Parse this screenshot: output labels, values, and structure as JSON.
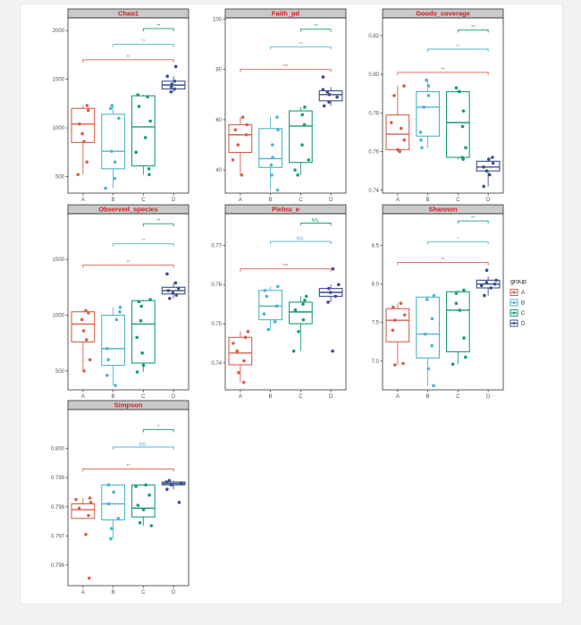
{
  "groups": [
    "A",
    "B",
    "C",
    "D"
  ],
  "colors": {
    "A": "#d6604d",
    "B": "#4fb3d1",
    "C": "#1a9a7a",
    "D": "#3b4f8a"
  },
  "legend": {
    "title": "group",
    "items": [
      "A",
      "B",
      "C",
      "D"
    ]
  },
  "chart_data": [
    {
      "type": "box",
      "title": "Chao1",
      "ylim": [
        330,
        2130
      ],
      "yticks": [
        500,
        1000,
        1500,
        2000
      ],
      "yticklabels": [
        "500",
        "1000",
        "1500",
        "2000"
      ],
      "boxes": [
        {
          "group": "A",
          "lower": 520,
          "q1": 850,
          "median": 1040,
          "q3": 1200,
          "upper": 1230
        },
        {
          "group": "B",
          "lower": 380,
          "q1": 580,
          "median": 760,
          "q3": 1140,
          "upper": 1230
        },
        {
          "group": "C",
          "lower": 520,
          "q1": 610,
          "median": 1010,
          "q3": 1330,
          "upper": 1340
        },
        {
          "group": "D",
          "lower": 1370,
          "q1": 1400,
          "median": 1440,
          "q3": 1480,
          "upper": 1530
        }
      ],
      "points": [
        {
          "group": "A",
          "values": [
            520,
            650,
            860,
            940,
            1040,
            1180,
            1230
          ]
        },
        {
          "group": "B",
          "values": [
            380,
            480,
            650,
            760,
            1100,
            1200,
            1230
          ]
        },
        {
          "group": "C",
          "values": [
            520,
            580,
            750,
            900,
            1070,
            1220,
            1320,
            1340
          ]
        },
        {
          "group": "D",
          "values": [
            1370,
            1400,
            1420,
            1450,
            1480,
            1530,
            1630
          ]
        }
      ],
      "comparisons": [
        {
          "pair": [
            "C",
            "D"
          ],
          "label": "**",
          "y": 2020
        },
        {
          "pair": [
            "B",
            "D"
          ],
          "label": "**",
          "y": 1860
        },
        {
          "pair": [
            "A",
            "D"
          ],
          "label": "**",
          "y": 1700
        }
      ]
    },
    {
      "type": "box",
      "title": "Faith_pd",
      "ylim": [
        30.8,
        100.5
      ],
      "yticks": [
        40,
        60,
        80,
        100
      ],
      "yticklabels": [
        "40",
        "60",
        "80",
        "100"
      ],
      "boxes": [
        {
          "group": "A",
          "lower": 38,
          "q1": 47,
          "median": 54,
          "q3": 58,
          "upper": 61
        },
        {
          "group": "B",
          "lower": 32,
          "q1": 41,
          "median": 44.5,
          "q3": 56.5,
          "upper": 61
        },
        {
          "group": "C",
          "lower": 38,
          "q1": 43,
          "median": 57.5,
          "q3": 63.5,
          "upper": 65
        },
        {
          "group": "D",
          "lower": 65.5,
          "q1": 67.5,
          "median": 70,
          "q3": 71.5,
          "upper": 73
        }
      ],
      "points": [
        {
          "group": "A",
          "values": [
            38,
            44,
            50,
            54,
            56,
            58,
            61
          ]
        },
        {
          "group": "B",
          "values": [
            32,
            38,
            42,
            45,
            50,
            56,
            61
          ]
        },
        {
          "group": "C",
          "values": [
            38,
            40,
            44,
            50,
            58,
            62,
            65
          ]
        },
        {
          "group": "D",
          "values": [
            65.5,
            67,
            69,
            70,
            71,
            72,
            77
          ]
        }
      ],
      "comparisons": [
        {
          "pair": [
            "C",
            "D"
          ],
          "label": "**",
          "y": 96
        },
        {
          "pair": [
            "B",
            "D"
          ],
          "label": "**",
          "y": 89
        },
        {
          "pair": [
            "A",
            "D"
          ],
          "label": "***",
          "y": 80
        }
      ]
    },
    {
      "type": "box",
      "title": "Goods_coverage",
      "ylim": [
        0.7385,
        0.8292
      ],
      "yticks": [
        0.74,
        0.76,
        0.78,
        0.8,
        0.82
      ],
      "yticklabels": [
        "0.74",
        "0.76",
        "0.78",
        "0.80",
        "0.82"
      ],
      "boxes": [
        {
          "group": "A",
          "lower": 0.76,
          "q1": 0.761,
          "median": 0.769,
          "q3": 0.779,
          "upper": 0.794
        },
        {
          "group": "B",
          "lower": 0.762,
          "q1": 0.768,
          "median": 0.783,
          "q3": 0.791,
          "upper": 0.797
        },
        {
          "group": "C",
          "lower": 0.756,
          "q1": 0.757,
          "median": 0.775,
          "q3": 0.791,
          "upper": 0.792
        },
        {
          "group": "D",
          "lower": 0.742,
          "q1": 0.75,
          "median": 0.752,
          "q3": 0.755,
          "upper": 0.757
        }
      ],
      "points": [
        {
          "group": "A",
          "values": [
            0.76,
            0.761,
            0.766,
            0.772,
            0.775,
            0.789,
            0.794
          ]
        },
        {
          "group": "B",
          "values": [
            0.762,
            0.766,
            0.77,
            0.783,
            0.789,
            0.794,
            0.797
          ]
        },
        {
          "group": "C",
          "values": [
            0.756,
            0.757,
            0.762,
            0.773,
            0.781,
            0.791,
            0.793
          ]
        },
        {
          "group": "D",
          "values": [
            0.742,
            0.748,
            0.75,
            0.752,
            0.754,
            0.756,
            0.757
          ]
        }
      ],
      "comparisons": [
        {
          "pair": [
            "C",
            "D"
          ],
          "label": "**",
          "y": 0.823
        },
        {
          "pair": [
            "B",
            "D"
          ],
          "label": "**",
          "y": 0.813
        },
        {
          "pair": [
            "A",
            "D"
          ],
          "label": "**",
          "y": 0.801
        }
      ]
    },
    {
      "type": "box",
      "title": "Observed_species",
      "ylim": [
        330,
        1910
      ],
      "yticks": [
        500,
        1000,
        1500
      ],
      "yticklabels": [
        "500",
        "1000",
        "1500"
      ],
      "boxes": [
        {
          "group": "A",
          "lower": 500,
          "q1": 760,
          "median": 920,
          "q3": 1030,
          "upper": 1040
        },
        {
          "group": "B",
          "lower": 370,
          "q1": 550,
          "median": 700,
          "q3": 1000,
          "upper": 1070
        },
        {
          "group": "C",
          "lower": 490,
          "q1": 570,
          "median": 920,
          "q3": 1130,
          "upper": 1140
        },
        {
          "group": "D",
          "lower": 1150,
          "q1": 1190,
          "median": 1220,
          "q3": 1250,
          "upper": 1290
        }
      ],
      "points": [
        {
          "group": "A",
          "values": [
            500,
            600,
            780,
            860,
            960,
            1020,
            1040
          ]
        },
        {
          "group": "B",
          "values": [
            370,
            460,
            600,
            700,
            960,
            1030,
            1070
          ]
        },
        {
          "group": "C",
          "values": [
            490,
            550,
            660,
            800,
            950,
            1080,
            1120,
            1140
          ]
        },
        {
          "group": "D",
          "values": [
            1150,
            1180,
            1200,
            1220,
            1240,
            1290,
            1370
          ]
        }
      ],
      "comparisons": [
        {
          "pair": [
            "C",
            "D"
          ],
          "label": "**",
          "y": 1820
        },
        {
          "pair": [
            "B",
            "D"
          ],
          "label": "**",
          "y": 1640
        },
        {
          "pair": [
            "A",
            "D"
          ],
          "label": "**",
          "y": 1450
        }
      ]
    },
    {
      "type": "box",
      "title": "Pielou_e",
      "ylim": [
        0.7331,
        0.7781
      ],
      "yticks": [
        0.74,
        0.75,
        0.76,
        0.77
      ],
      "yticklabels": [
        "0.74",
        "0.75",
        "0.76",
        "0.77"
      ],
      "boxes": [
        {
          "group": "A",
          "lower": 0.735,
          "q1": 0.7395,
          "median": 0.7425,
          "q3": 0.7465,
          "upper": 0.748
        },
        {
          "group": "B",
          "lower": 0.7485,
          "q1": 0.751,
          "median": 0.7545,
          "q3": 0.7585,
          "upper": 0.7595
        },
        {
          "group": "C",
          "lower": 0.743,
          "q1": 0.75,
          "median": 0.753,
          "q3": 0.7555,
          "upper": 0.757
        },
        {
          "group": "D",
          "lower": 0.7555,
          "q1": 0.757,
          "median": 0.758,
          "q3": 0.759,
          "upper": 0.76
        }
      ],
      "points": [
        {
          "group": "A",
          "values": [
            0.735,
            0.7375,
            0.7405,
            0.743,
            0.745,
            0.7465,
            0.748
          ]
        },
        {
          "group": "B",
          "values": [
            0.7485,
            0.7505,
            0.7525,
            0.7545,
            0.757,
            0.7585,
            0.7595
          ]
        },
        {
          "group": "C",
          "values": [
            0.743,
            0.748,
            0.751,
            0.7535,
            0.755,
            0.756,
            0.757
          ]
        },
        {
          "group": "D",
          "values": [
            0.743,
            0.7555,
            0.757,
            0.758,
            0.759,
            0.76,
            0.764
          ]
        }
      ],
      "comparisons": [
        {
          "pair": [
            "C",
            "D"
          ],
          "label": "NS.",
          "y": 0.7757
        },
        {
          "pair": [
            "B",
            "D"
          ],
          "label": "NS.",
          "y": 0.771
        },
        {
          "pair": [
            "A",
            "D"
          ],
          "label": "***",
          "y": 0.764
        }
      ]
    },
    {
      "type": "box",
      "title": "Shannon",
      "ylim": [
        6.626,
        8.914
      ],
      "yticks": [
        7.0,
        7.5,
        8.0,
        8.5
      ],
      "yticklabels": [
        "7.0",
        "7.5",
        "8.0",
        "8.5"
      ],
      "boxes": [
        {
          "group": "A",
          "lower": 6.95,
          "q1": 7.25,
          "median": 7.53,
          "q3": 7.68,
          "upper": 7.75
        },
        {
          "group": "B",
          "lower": 6.68,
          "q1": 7.04,
          "median": 7.35,
          "q3": 7.83,
          "upper": 7.85
        },
        {
          "group": "C",
          "lower": 6.96,
          "q1": 7.12,
          "median": 7.66,
          "q3": 7.9,
          "upper": 7.92
        },
        {
          "group": "D",
          "lower": 7.85,
          "q1": 7.95,
          "median": 8.0,
          "q3": 8.05,
          "upper": 8.1
        }
      ],
      "points": [
        {
          "group": "A",
          "values": [
            6.95,
            6.97,
            7.4,
            7.53,
            7.6,
            7.7,
            7.75
          ]
        },
        {
          "group": "B",
          "values": [
            6.68,
            6.9,
            7.2,
            7.35,
            7.55,
            7.8,
            7.85
          ]
        },
        {
          "group": "C",
          "values": [
            6.96,
            7.05,
            7.3,
            7.66,
            7.75,
            7.88,
            7.92
          ]
        },
        {
          "group": "D",
          "values": [
            7.85,
            7.95,
            7.98,
            8.0,
            8.02,
            8.05,
            8.18
          ]
        }
      ],
      "comparisons": [
        {
          "pair": [
            "C",
            "D"
          ],
          "label": "**",
          "y": 8.82
        },
        {
          "pair": [
            "B",
            "D"
          ],
          "label": "*",
          "y": 8.55
        },
        {
          "pair": [
            "A",
            "D"
          ],
          "label": "**",
          "y": 8.28
        }
      ]
    },
    {
      "type": "box",
      "title": "Simpson",
      "ylim": [
        0.79529,
        0.80134
      ],
      "yticks": [
        0.796,
        0.797,
        0.798,
        0.799,
        0.8
      ],
      "yticklabels": [
        "0.796",
        "0.797",
        "0.798",
        "0.799",
        "0.800"
      ],
      "boxes": [
        {
          "group": "A",
          "lower": 0.7977,
          "q1": 0.7976,
          "median": 0.7979,
          "q3": 0.7981,
          "upper": 0.7983
        },
        {
          "group": "B",
          "lower": 0.7969,
          "q1": 0.79755,
          "median": 0.7981,
          "q3": 0.79875,
          "upper": 0.79875
        },
        {
          "group": "C",
          "lower": 0.79735,
          "q1": 0.79765,
          "median": 0.79795,
          "q3": 0.79875,
          "upper": 0.79875
        },
        {
          "group": "D",
          "lower": 0.7986,
          "q1": 0.79875,
          "median": 0.7988,
          "q3": 0.79885,
          "upper": 0.7989
        }
      ],
      "points": [
        {
          "group": "A",
          "values": [
            0.79555,
            0.79705,
            0.7977,
            0.79795,
            0.79815,
            0.79825,
            0.7983
          ]
        },
        {
          "group": "B",
          "values": [
            0.7969,
            0.79725,
            0.7976,
            0.7981,
            0.7985,
            0.79875
          ]
        },
        {
          "group": "C",
          "values": [
            0.79735,
            0.79745,
            0.7979,
            0.79805,
            0.7984,
            0.7987,
            0.79875
          ]
        },
        {
          "group": "D",
          "values": [
            0.79815,
            0.7986,
            0.79875,
            0.7988,
            0.79885,
            0.7989
          ]
        }
      ],
      "comparisons": [
        {
          "pair": [
            "C",
            "D"
          ],
          "label": "*",
          "y": 0.80065
        },
        {
          "pair": [
            "B",
            "D"
          ],
          "label": "NS.",
          "y": 0.80005
        },
        {
          "pair": [
            "A",
            "D"
          ],
          "label": "**",
          "y": 0.7993
        }
      ]
    }
  ]
}
